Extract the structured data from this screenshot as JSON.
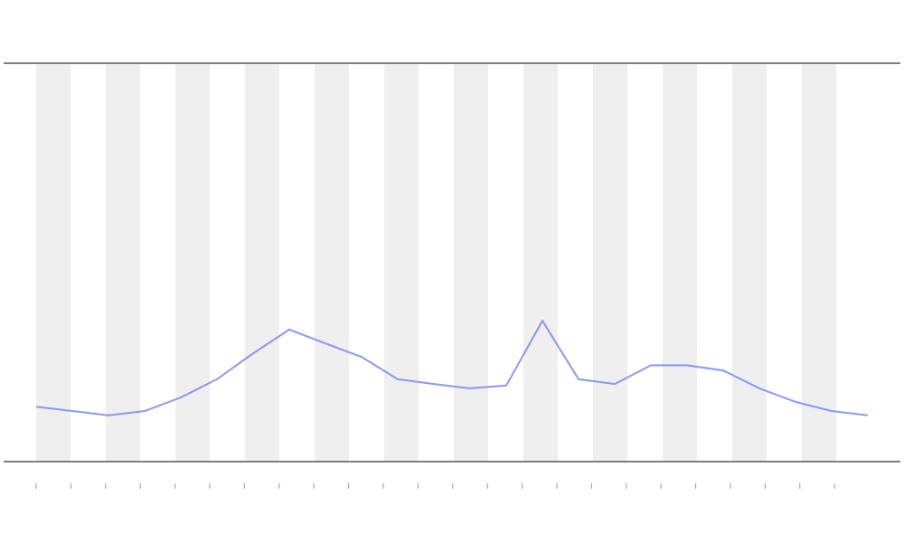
{
  "chart_data": {
    "type": "line",
    "values": [
      13.6,
      12.5,
      11.4,
      12.5,
      15.9,
      20.5,
      27,
      33,
      29.5,
      26.1,
      20.5,
      19.3,
      18.2,
      18.9,
      35.2,
      20.5,
      19.3,
      24,
      24,
      22.7,
      18.2,
      14.8,
      12.5,
      11.4
    ],
    "color": "#6f7ff0",
    "ylim": [
      0,
      100
    ]
  }
}
